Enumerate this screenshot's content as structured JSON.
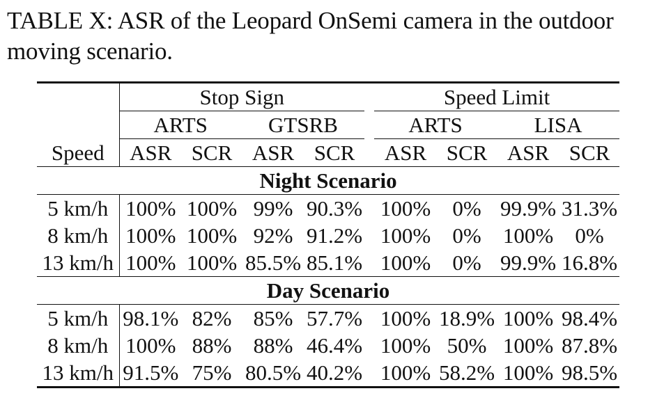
{
  "caption": {
    "line1": "TABLE X: ASR of the Leopard OnSemi camera in the outdoor",
    "line2": "moving scenario."
  },
  "table": {
    "groups": [
      "Stop Sign",
      "Speed Limit"
    ],
    "datasets": [
      "ARTS",
      "GTSRB",
      "ARTS",
      "LISA"
    ],
    "columns": [
      "Speed",
      "ASR",
      "SCR",
      "ASR",
      "SCR",
      "ASR",
      "SCR",
      "ASR",
      "SCR"
    ],
    "sections": [
      {
        "title": "Night Scenario",
        "rows": [
          [
            "5 km/h",
            "100%",
            "100%",
            "99%",
            "90.3%",
            "100%",
            "0%",
            "99.9%",
            "31.3%"
          ],
          [
            "8 km/h",
            "100%",
            "100%",
            "92%",
            "91.2%",
            "100%",
            "0%",
            "100%",
            "0%"
          ],
          [
            "13 km/h",
            "100%",
            "100%",
            "85.5%",
            "85.1%",
            "100%",
            "0%",
            "99.9%",
            "16.8%"
          ]
        ]
      },
      {
        "title": "Day Scenario",
        "rows": [
          [
            "5 km/h",
            "98.1%",
            "82%",
            "85%",
            "57.7%",
            "100%",
            "18.9%",
            "100%",
            "98.4%"
          ],
          [
            "8 km/h",
            "100%",
            "88%",
            "88%",
            "46.4%",
            "100%",
            "50%",
            "100%",
            "87.8%"
          ],
          [
            "13 km/h",
            "91.5%",
            "75%",
            "80.5%",
            "40.2%",
            "100%",
            "58.2%",
            "100%",
            "98.5%"
          ]
        ]
      }
    ]
  }
}
